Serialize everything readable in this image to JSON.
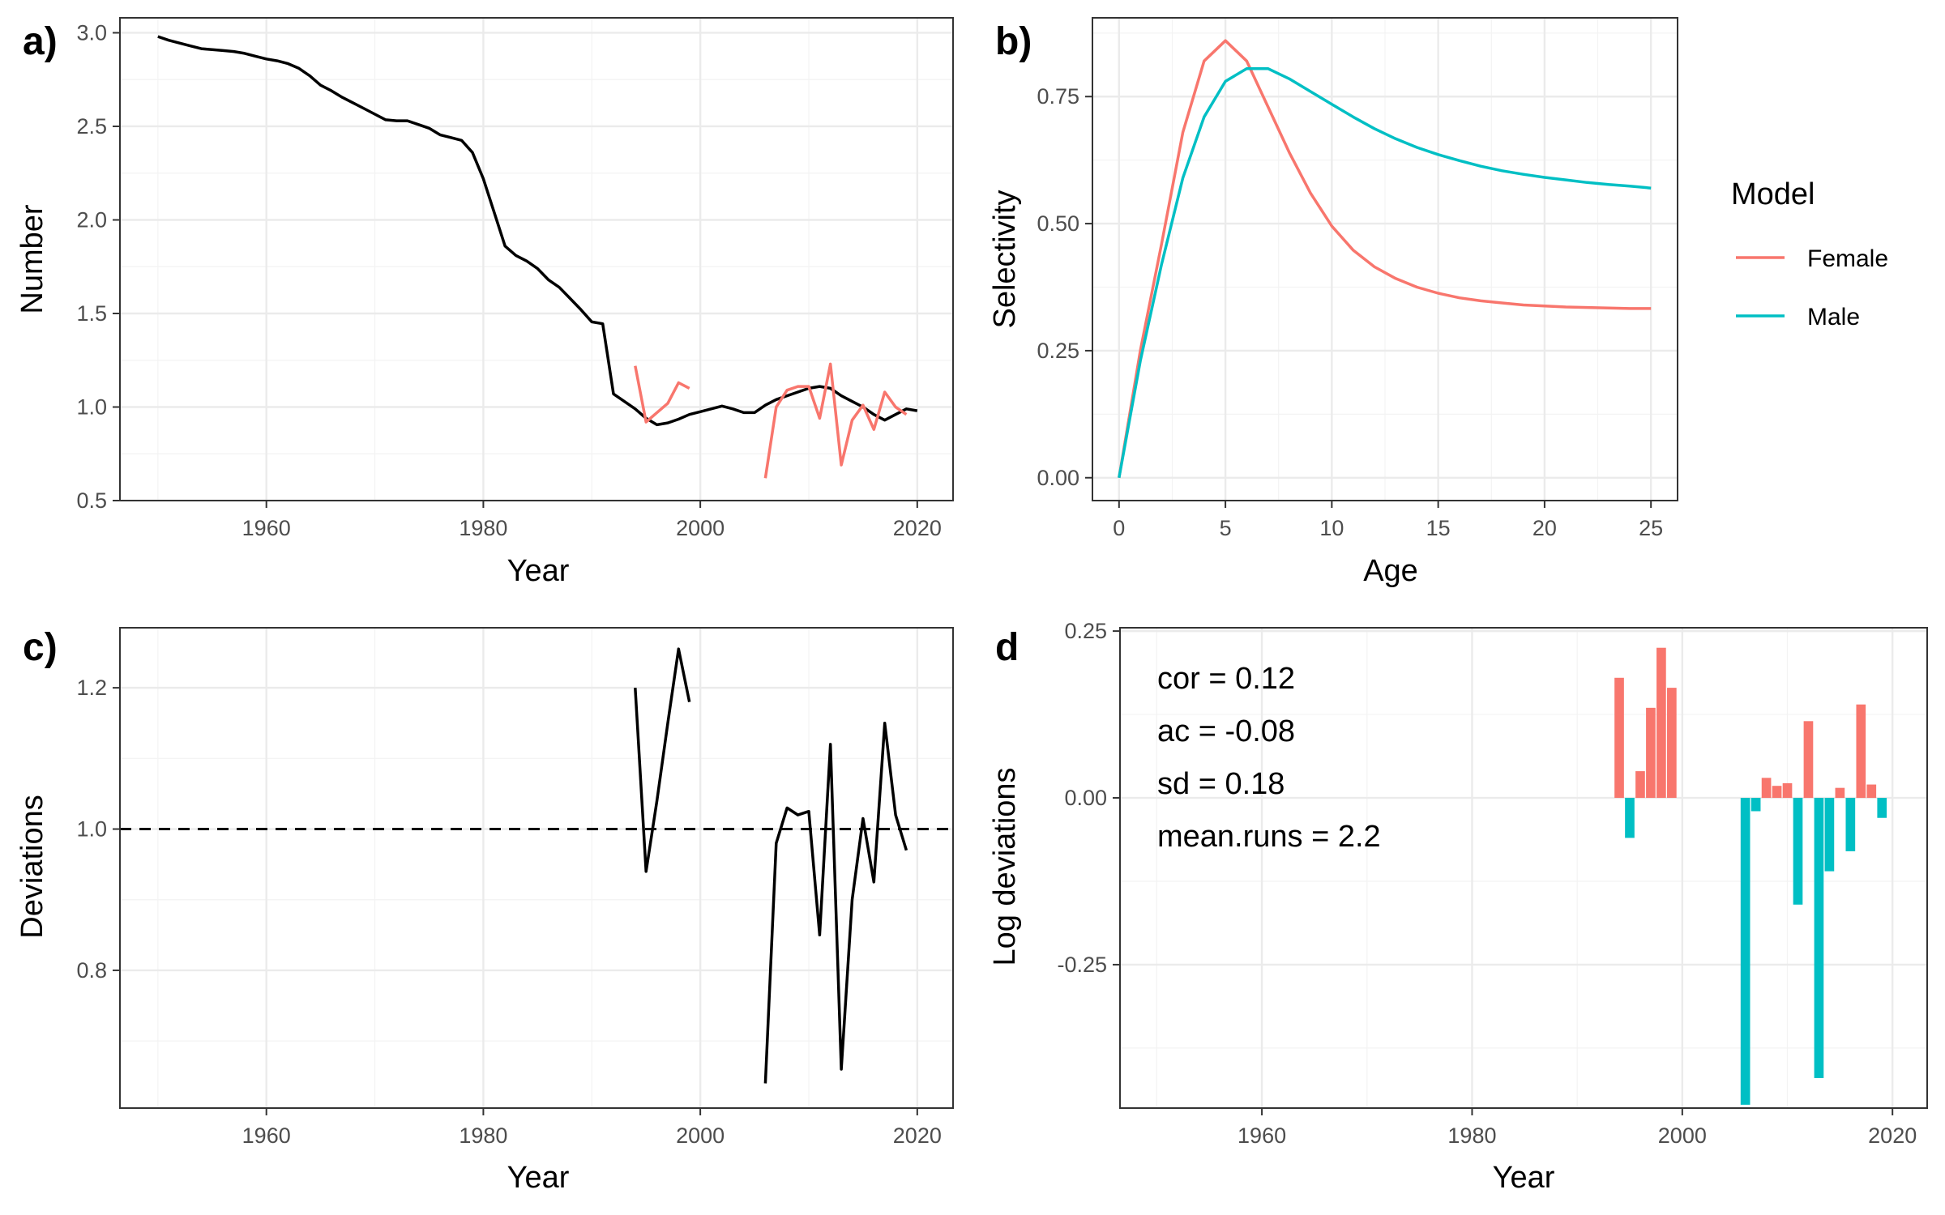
{
  "colors": {
    "female": "#F8766D",
    "male": "#00BFC4",
    "line": "#000000"
  },
  "legend": {
    "title": "Model",
    "entries": [
      "Female",
      "Male"
    ]
  },
  "chart_data": [
    {
      "id": "a",
      "tag": "a)",
      "type": "line",
      "xlabel": "Year",
      "ylabel": "Number",
      "xlim": [
        1946.5,
        2023.3
      ],
      "ylim": [
        0.5,
        3.08
      ],
      "xticks": [
        1960,
        1980,
        2000,
        2020
      ],
      "yticks": [
        0.5,
        1.0,
        1.5,
        2.0,
        2.5,
        3.0
      ],
      "ytick_labels": [
        "0.5",
        "1.0",
        "1.5",
        "2.0",
        "2.5",
        "3.0"
      ],
      "series": [
        {
          "color_key": "line",
          "x": [
            1950,
            1951,
            1952,
            1953,
            1954,
            1955,
            1956,
            1957,
            1958,
            1959,
            1960,
            1961,
            1962,
            1963,
            1964,
            1965,
            1966,
            1967,
            1968,
            1969,
            1970,
            1971,
            1972,
            1973,
            1974,
            1975,
            1976,
            1977,
            1978,
            1979,
            1980,
            1981,
            1982,
            1983,
            1984,
            1985,
            1986,
            1987,
            1988,
            1989,
            1990,
            1991,
            1992,
            1993,
            1994,
            1995,
            1996,
            1997,
            1998,
            1999,
            2000,
            2001,
            2002,
            2003,
            2004,
            2005,
            2006,
            2007,
            2008,
            2009,
            2010,
            2011,
            2012,
            2013,
            2014,
            2015,
            2016,
            2017,
            2018,
            2019,
            2020
          ],
          "y": [
            2.98,
            2.96,
            2.945,
            2.93,
            2.915,
            2.91,
            2.905,
            2.9,
            2.89,
            2.875,
            2.86,
            2.85,
            2.835,
            2.81,
            2.77,
            2.72,
            2.69,
            2.655,
            2.625,
            2.595,
            2.565,
            2.535,
            2.53,
            2.53,
            2.51,
            2.49,
            2.455,
            2.44,
            2.425,
            2.36,
            2.22,
            2.04,
            1.86,
            1.81,
            1.78,
            1.74,
            1.68,
            1.64,
            1.58,
            1.52,
            1.455,
            1.445,
            1.07,
            1.03,
            0.99,
            0.94,
            0.905,
            0.915,
            0.935,
            0.96,
            0.975,
            0.99,
            1.005,
            0.99,
            0.97,
            0.97,
            1.01,
            1.04,
            1.06,
            1.08,
            1.1,
            1.11,
            1.1,
            1.06,
            1.03,
            1.0,
            0.96,
            0.93,
            0.96,
            0.99,
            0.98
          ]
        },
        {
          "color_key": "female",
          "x": [
            1994,
            1995,
            1996,
            1997,
            1998,
            1999
          ],
          "y": [
            1.22,
            0.92,
            0.97,
            1.02,
            1.13,
            1.1
          ]
        },
        {
          "color_key": "female",
          "x": [
            2006,
            2007,
            2008,
            2009,
            2010,
            2011,
            2012,
            2013,
            2014,
            2015,
            2016,
            2017,
            2018,
            2019
          ],
          "y": [
            0.62,
            1.0,
            1.09,
            1.11,
            1.11,
            0.94,
            1.23,
            0.69,
            0.93,
            1.01,
            0.88,
            1.08,
            1.0,
            0.96
          ]
        }
      ]
    },
    {
      "id": "b",
      "tag": "b)",
      "type": "line",
      "xlabel": "Age",
      "ylabel": "Selectivity",
      "xlim": [
        -1.25,
        26.25
      ],
      "ylim": [
        -0.045,
        0.905
      ],
      "xticks": [
        0,
        5,
        10,
        15,
        20,
        25
      ],
      "yticks": [
        0,
        0.25,
        0.5,
        0.75
      ],
      "ytick_labels": [
        "0.00",
        "0.25",
        "0.50",
        "0.75"
      ],
      "series": [
        {
          "name": "Female",
          "color_key": "female",
          "x": [
            0,
            1,
            2,
            3,
            4,
            5,
            6,
            7,
            8,
            9,
            10,
            11,
            12,
            13,
            14,
            15,
            16,
            17,
            18,
            19,
            20,
            21,
            22,
            23,
            24,
            25
          ],
          "y": [
            0.0,
            0.25,
            0.46,
            0.68,
            0.82,
            0.86,
            0.82,
            0.73,
            0.64,
            0.56,
            0.495,
            0.448,
            0.415,
            0.392,
            0.375,
            0.363,
            0.354,
            0.348,
            0.344,
            0.34,
            0.338,
            0.336,
            0.335,
            0.334,
            0.333,
            0.333
          ]
        },
        {
          "name": "Male",
          "color_key": "male",
          "x": [
            0,
            1,
            2,
            3,
            4,
            5,
            6,
            7,
            8,
            9,
            10,
            11,
            12,
            13,
            14,
            15,
            16,
            17,
            18,
            19,
            20,
            21,
            22,
            23,
            24,
            25
          ],
          "y": [
            0.0,
            0.23,
            0.42,
            0.59,
            0.71,
            0.78,
            0.805,
            0.805,
            0.785,
            0.76,
            0.735,
            0.71,
            0.687,
            0.667,
            0.65,
            0.636,
            0.624,
            0.613,
            0.604,
            0.597,
            0.591,
            0.586,
            0.581,
            0.577,
            0.574,
            0.57
          ]
        }
      ]
    },
    {
      "id": "c",
      "tag": "c)",
      "type": "line",
      "xlabel": "Year",
      "ylabel": "Deviations",
      "xlim": [
        1946.5,
        2023.3
      ],
      "ylim": [
        0.605,
        1.285
      ],
      "xticks": [
        1960,
        1980,
        2000,
        2020
      ],
      "yticks": [
        0.8,
        1.0,
        1.2
      ],
      "ytick_labels": [
        "0.8",
        "1.0",
        "1.2"
      ],
      "reference_line": 1.0,
      "series": [
        {
          "color_key": "line",
          "x": [
            1994,
            1995,
            1996,
            1997,
            1998,
            1999
          ],
          "y": [
            1.2,
            0.94,
            1.04,
            1.15,
            1.255,
            1.18
          ]
        },
        {
          "color_key": "line",
          "x": [
            2006,
            2007,
            2008,
            2009,
            2010,
            2011,
            2012,
            2013,
            2014,
            2015,
            2016,
            2017,
            2018,
            2019
          ],
          "y": [
            0.64,
            0.98,
            1.03,
            1.02,
            1.025,
            0.85,
            1.12,
            0.66,
            0.9,
            1.015,
            0.925,
            1.15,
            1.02,
            0.97
          ]
        }
      ]
    },
    {
      "id": "d",
      "tag": "d",
      "type": "bar",
      "xlabel": "Year",
      "ylabel": "Log deviations",
      "xlim": [
        1946.5,
        2023.3
      ],
      "ylim": [
        -0.465,
        0.255
      ],
      "xticks": [
        1960,
        1980,
        2000,
        2020
      ],
      "yticks": [
        -0.25,
        0,
        0.25
      ],
      "ytick_labels": [
        "-0.25",
        "0.00",
        "0.25"
      ],
      "stats": [
        "cor = 0.12",
        "ac = -0.08",
        "sd = 0.18",
        "mean.runs = 2.2"
      ],
      "series": [
        {
          "name": "Female",
          "color_key": "female",
          "x": [
            1994,
            1996,
            1997,
            1998,
            1999,
            2008,
            2009,
            2010,
            2012,
            2015,
            2017,
            2018
          ],
          "values": [
            0.18,
            0.04,
            0.135,
            0.225,
            0.165,
            0.03,
            0.018,
            0.022,
            0.115,
            0.015,
            0.14,
            0.02
          ]
        },
        {
          "name": "Male",
          "color_key": "male",
          "x": [
            1995,
            2006,
            2007,
            2011,
            2013,
            2014,
            2016,
            2019
          ],
          "values": [
            -0.06,
            -0.46,
            -0.02,
            -0.16,
            -0.42,
            -0.11,
            -0.08,
            -0.03
          ]
        }
      ]
    }
  ]
}
